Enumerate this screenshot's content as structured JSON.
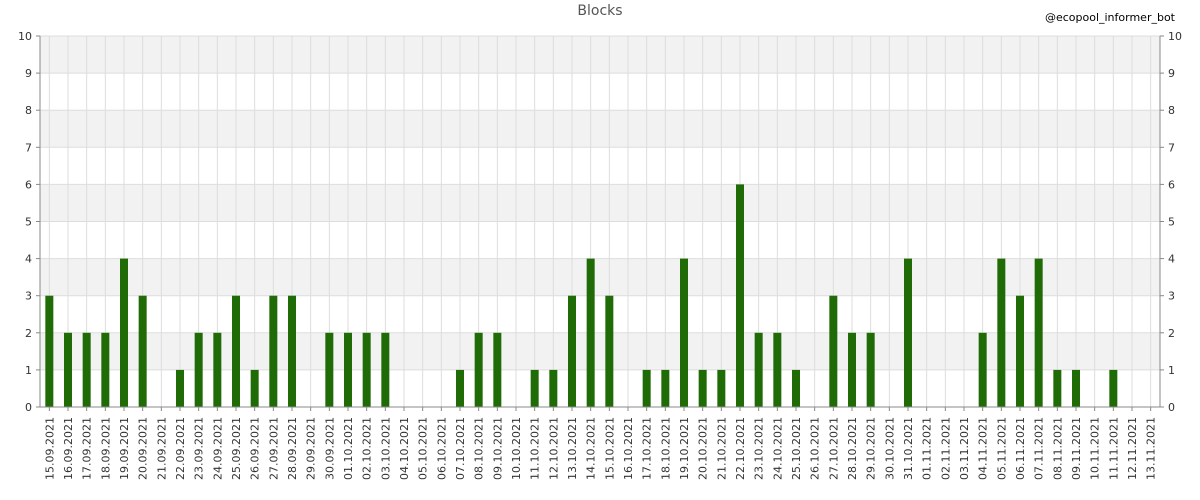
{
  "chart_data": {
    "type": "bar",
    "title": "Blocks",
    "watermark": "@ecopool_informer_bot",
    "xlabel": "",
    "ylabel": "",
    "ylim": [
      0,
      10
    ],
    "yticks": [
      "0",
      "1",
      "2",
      "3",
      "4",
      "5",
      "6",
      "7",
      "8",
      "9",
      "10"
    ],
    "grid": true,
    "categories": [
      "15.09.2021",
      "16.09.2021",
      "17.09.2021",
      "18.09.2021",
      "19.09.2021",
      "20.09.2021",
      "21.09.2021",
      "22.09.2021",
      "23.09.2021",
      "24.09.2021",
      "25.09.2021",
      "26.09.2021",
      "27.09.2021",
      "28.09.2021",
      "29.09.2021",
      "30.09.2021",
      "01.10.2021",
      "02.10.2021",
      "03.10.2021",
      "04.10.2021",
      "05.10.2021",
      "06.10.2021",
      "07.10.2021",
      "08.10.2021",
      "09.10.2021",
      "10.10.2021",
      "11.10.2021",
      "12.10.2021",
      "13.10.2021",
      "14.10.2021",
      "15.10.2021",
      "16.10.2021",
      "17.10.2021",
      "18.10.2021",
      "19.10.2021",
      "20.10.2021",
      "21.10.2021",
      "22.10.2021",
      "23.10.2021",
      "24.10.2021",
      "25.10.2021",
      "26.10.2021",
      "27.10.2021",
      "28.10.2021",
      "29.10.2021",
      "30.10.2021",
      "31.10.2021",
      "01.11.2021",
      "02.11.2021",
      "03.11.2021",
      "04.11.2021",
      "05.11.2021",
      "06.11.2021",
      "07.11.2021",
      "08.11.2021",
      "09.11.2021",
      "10.11.2021",
      "11.11.2021",
      "12.11.2021",
      "13.11.2021"
    ],
    "values": [
      3,
      2,
      2,
      2,
      4,
      3,
      0,
      1,
      2,
      2,
      3,
      1,
      3,
      3,
      0,
      2,
      2,
      2,
      2,
      0,
      0,
      0,
      1,
      2,
      2,
      0,
      1,
      1,
      3,
      4,
      3,
      0,
      1,
      1,
      4,
      1,
      1,
      6,
      2,
      2,
      1,
      0,
      3,
      2,
      2,
      0,
      4,
      0,
      0,
      0,
      2,
      4,
      3,
      4,
      1,
      1,
      0,
      1,
      0,
      0
    ],
    "colors": {
      "bar": "#1f6b06",
      "band": "#f2f2f2",
      "grid": "#dddddd",
      "axis": "#888888",
      "text": "#333333"
    }
  }
}
